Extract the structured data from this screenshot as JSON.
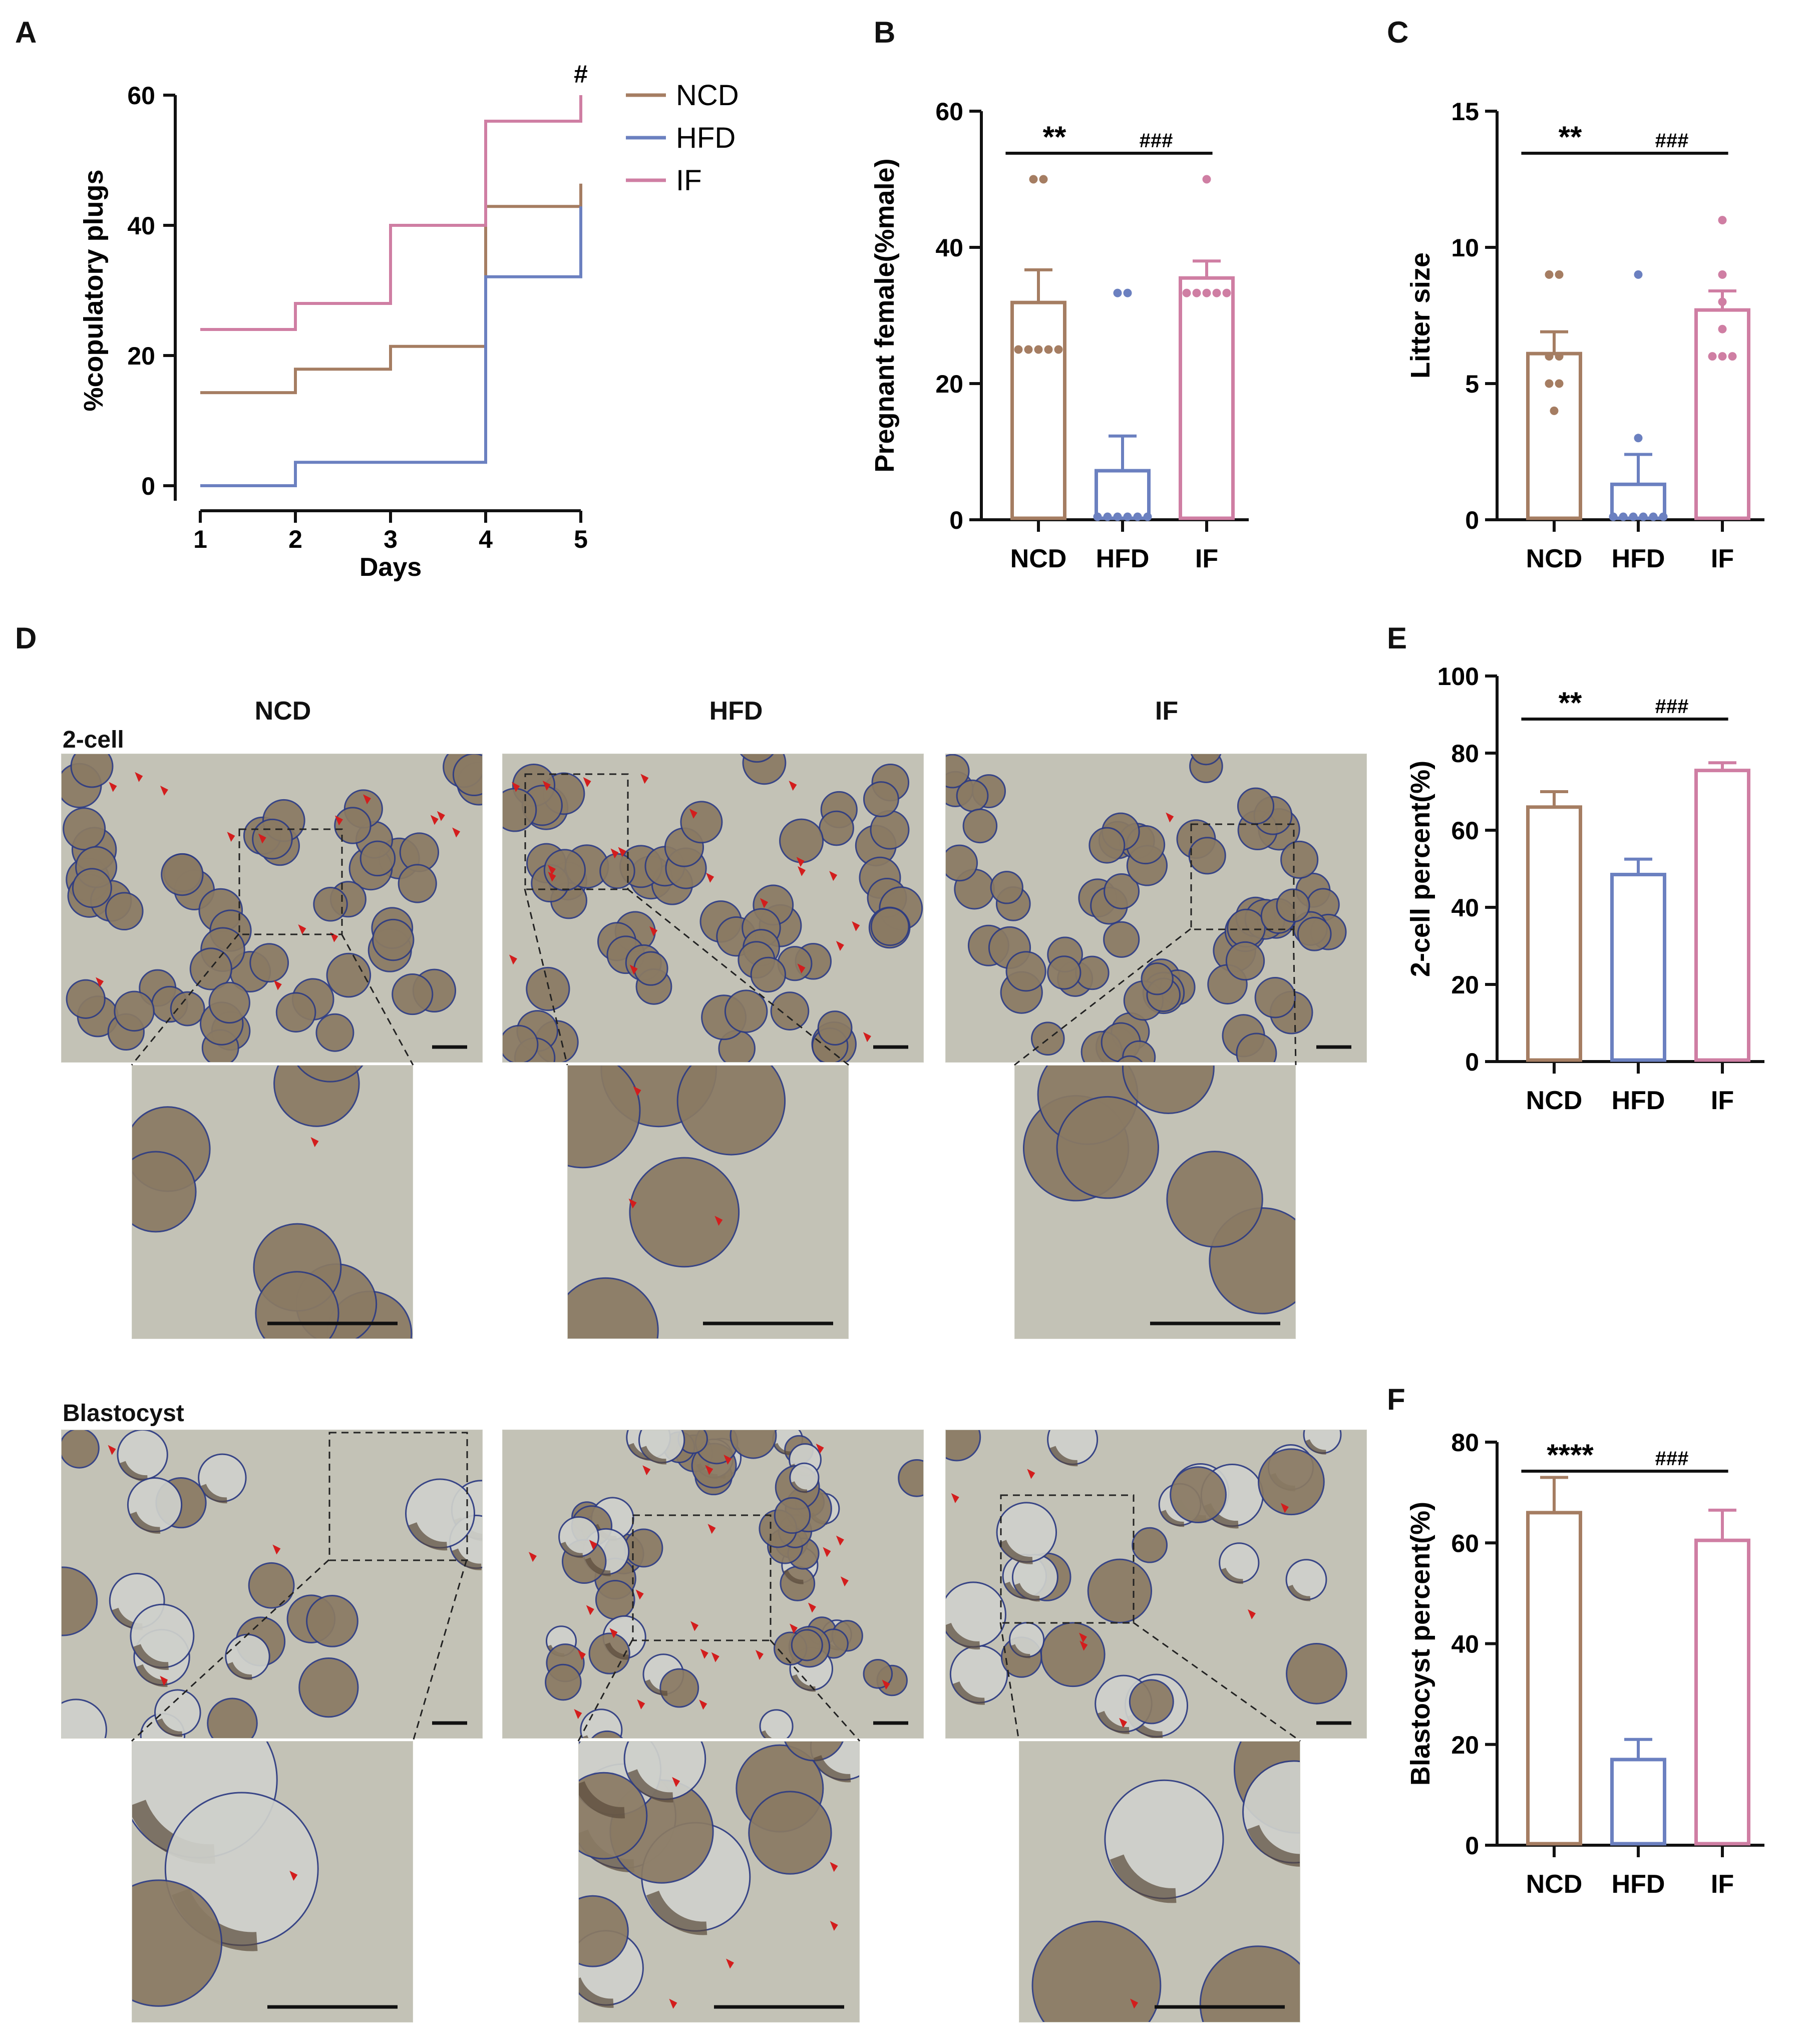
{
  "colors": {
    "ncd": "#a57d62",
    "hfd": "#6b80c0",
    "if": "#cf7ea3",
    "axis": "#111111",
    "arrow": "#d31d1d",
    "bg": "#c3c2b6",
    "cell": "#8a7a63",
    "outline": "#2d3b82"
  },
  "panel_labels": {
    "A": "A",
    "B": "B",
    "C": "C",
    "D": "D",
    "E": "E",
    "F": "F"
  },
  "panel_d": {
    "col_titles": [
      "NCD",
      "HFD",
      "IF"
    ],
    "row_labels": [
      "2-cell",
      "Blastocyst"
    ]
  },
  "chart_data": [
    {
      "id": "A",
      "type": "line",
      "title": "",
      "xlabel": "Days",
      "ylabel": "%copulatory plugs",
      "x": [
        1,
        2,
        3,
        4,
        5
      ],
      "xlim": [
        1,
        5
      ],
      "ylim": [
        0,
        60
      ],
      "xticks": [
        1,
        2,
        3,
        4,
        5
      ],
      "yticks": [
        0,
        20,
        40,
        60
      ],
      "series": [
        {
          "name": "NCD",
          "color": "#a57d62",
          "values": [
            14.3,
            17.9,
            21.4,
            42.9,
            46.4
          ]
        },
        {
          "name": "HFD",
          "color": "#6b80c0",
          "values": [
            0,
            3.6,
            3.6,
            32.1,
            42.9
          ]
        },
        {
          "name": "IF",
          "color": "#cf7ea3",
          "values": [
            24.0,
            28.0,
            40.0,
            56.0,
            60.0
          ]
        }
      ],
      "legend": [
        "NCD",
        "HFD",
        "IF"
      ],
      "annotation": "#"
    },
    {
      "id": "B",
      "type": "bar",
      "ylabel": "Pregnant female(%male)",
      "categories": [
        "NCD",
        "HFD",
        "IF"
      ],
      "ylim": [
        0,
        60
      ],
      "yticks": [
        0,
        20,
        40,
        60
      ],
      "values": [
        31.9,
        7.2,
        35.5
      ],
      "errors": [
        4.8,
        5.1,
        2.5
      ],
      "colors": [
        "#a57d62",
        "#6b80c0",
        "#cf7ea3"
      ],
      "points": [
        [
          50,
          50,
          25,
          25,
          25,
          25,
          25
        ],
        [
          33.3,
          33.3,
          0,
          0,
          0,
          0,
          0,
          0
        ],
        [
          50,
          33.3,
          33.3,
          33.3,
          33.3,
          33.3
        ]
      ],
      "significance": [
        {
          "from": 0,
          "to": 1,
          "label": "**"
        },
        {
          "from": 1,
          "to": 2,
          "label": "###"
        }
      ]
    },
    {
      "id": "C",
      "type": "bar",
      "ylabel": "Litter  size",
      "categories": [
        "NCD",
        "HFD",
        "IF"
      ],
      "ylim": [
        0,
        15
      ],
      "yticks": [
        0,
        5,
        10,
        15
      ],
      "values": [
        6.1,
        1.3,
        7.7
      ],
      "errors": [
        0.8,
        1.1,
        0.7
      ],
      "colors": [
        "#a57d62",
        "#6b80c0",
        "#cf7ea3"
      ],
      "points": [
        [
          9,
          9,
          6,
          6,
          5,
          5,
          4
        ],
        [
          9,
          3,
          0,
          0,
          0,
          0,
          0,
          0
        ],
        [
          11,
          9,
          8,
          7,
          6,
          6,
          6
        ]
      ],
      "significance": [
        {
          "from": 0,
          "to": 1,
          "label": "**"
        },
        {
          "from": 1,
          "to": 2,
          "label": "###"
        }
      ]
    },
    {
      "id": "E",
      "type": "bar",
      "ylabel": "2-cell percent(%)",
      "categories": [
        "NCD",
        "HFD",
        "IF"
      ],
      "ylim": [
        0,
        100
      ],
      "yticks": [
        0,
        20,
        40,
        60,
        80,
        100
      ],
      "values": [
        66,
        48.5,
        75.5
      ],
      "errors": [
        4,
        4,
        2
      ],
      "colors": [
        "#a57d62",
        "#6b80c0",
        "#cf7ea3"
      ],
      "points": [
        [],
        [],
        []
      ],
      "significance": [
        {
          "from": 0,
          "to": 1,
          "label": "**"
        },
        {
          "from": 1,
          "to": 2,
          "label": "###"
        }
      ]
    },
    {
      "id": "F",
      "type": "bar",
      "ylabel": "Blastocyst percent(%)",
      "categories": [
        "NCD",
        "HFD",
        "IF"
      ],
      "ylim": [
        0,
        80
      ],
      "yticks": [
        0,
        20,
        40,
        60,
        80
      ],
      "values": [
        66,
        17,
        60.5
      ],
      "errors": [
        7,
        4,
        6
      ],
      "colors": [
        "#a57d62",
        "#6b80c0",
        "#cf7ea3"
      ],
      "points": [
        [],
        [],
        []
      ],
      "significance": [
        {
          "from": 0,
          "to": 1,
          "label": "****"
        },
        {
          "from": 1,
          "to": 2,
          "label": "###"
        }
      ]
    }
  ]
}
